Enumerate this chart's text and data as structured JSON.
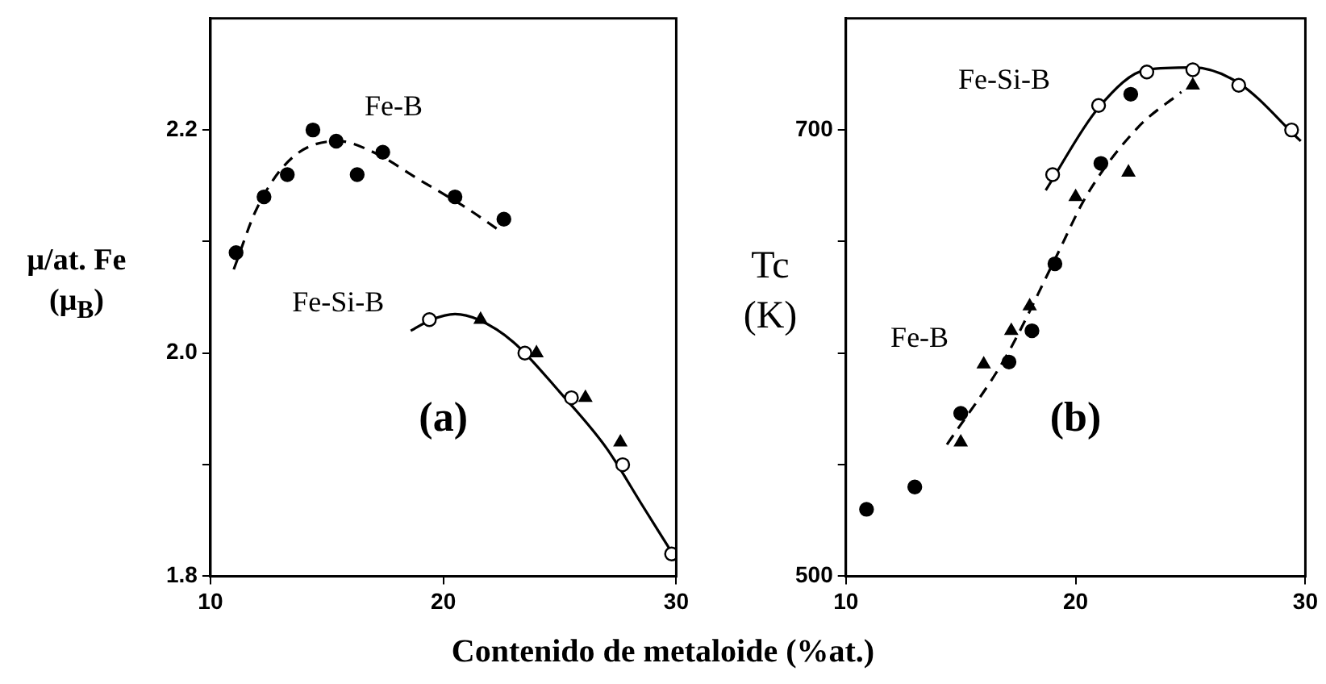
{
  "chart_data": [
    {
      "type": "scatter",
      "ylabel": "μ/at. Fe\n(μ$_{B}$)",
      "xlabel": "Contenido de metaloide (%at.)",
      "annotations": [
        "(a)"
      ],
      "xlim": [
        10,
        30
      ],
      "xticks": [
        10,
        20,
        30
      ],
      "ylim": [
        1.8,
        2.3
      ],
      "yticks": [
        1.8,
        {
          "value": 1.9,
          "label": null
        },
        {
          "value": 2.0,
          "label": "2.0"
        },
        {
          "value": 2.1,
          "label": null
        },
        2.2
      ],
      "grid": false,
      "legend": false,
      "series": [
        {
          "name": "Fe-B",
          "marker": "circle",
          "color": "#000000",
          "x": [
            11.1,
            12.3,
            13.3,
            14.4,
            15.4,
            16.3,
            17.4,
            20.5,
            22.6
          ],
          "values": [
            2.09,
            2.14,
            2.16,
            2.2,
            2.19,
            2.16,
            2.18,
            2.14,
            2.12
          ]
        },
        {
          "type": "line",
          "marker": "none",
          "line_style": "dashed",
          "color": "#000000",
          "x": [
            11.0,
            12.0,
            13.5,
            15.5,
            17.0,
            19.0,
            21.0,
            22.4
          ],
          "values": [
            2.075,
            2.13,
            2.175,
            2.19,
            2.18,
            2.155,
            2.13,
            2.11
          ]
        },
        {
          "name": "Fe-Si-B",
          "marker": "circle",
          "color": "#ffffff",
          "x": [
            19.4,
            23.5,
            25.5,
            27.7,
            29.8
          ],
          "values": [
            2.03,
            2.0,
            1.96,
            1.9,
            1.82
          ]
        },
        {
          "type": "line",
          "marker": "none",
          "line_style": "solid",
          "color": "#000000",
          "x": [
            18.6,
            19.5,
            20.5,
            21.5,
            23.0,
            25.0,
            27.0,
            28.5,
            30.0
          ],
          "values": [
            2.02,
            2.03,
            2.035,
            2.03,
            2.01,
            1.965,
            1.915,
            1.865,
            1.815
          ]
        },
        {
          "marker": "triangle",
          "color": "#000000",
          "x": [
            21.6,
            24.0,
            26.1,
            27.6
          ],
          "values": [
            2.03,
            2.0,
            1.96,
            1.92
          ]
        }
      ]
    },
    {
      "type": "scatter",
      "ylabel": "Tc\n(K)",
      "annotations": [
        "(b)"
      ],
      "xlim": [
        10,
        30
      ],
      "xticks": [
        10,
        20,
        30
      ],
      "ylim": [
        500,
        750
      ],
      "yticks": [
        500,
        {
          "value": 550,
          "label": null
        },
        {
          "value": 600,
          "label": null
        },
        {
          "value": 650,
          "label": null
        },
        700
      ],
      "grid": false,
      "legend": false,
      "series": [
        {
          "marker": "circle",
          "color": "#000000",
          "x": [
            10.9,
            13.0,
            15.0,
            17.1,
            18.1,
            19.1,
            21.1,
            22.4
          ],
          "values": [
            530,
            540,
            573,
            596,
            610,
            640,
            685,
            716
          ]
        },
        {
          "name": "Fe-B",
          "type": "line",
          "marker": "none",
          "line_style": "dashed",
          "color": "#000000",
          "x": [
            14.4,
            17.0,
            19.1,
            20.5,
            22.7,
            24.6
          ],
          "values": [
            559,
            599,
            642,
            671,
            701,
            717
          ]
        },
        {
          "name": "Fe-Si-B",
          "marker": "circle",
          "color": "#ffffff",
          "x": [
            19.0,
            21.0,
            23.1,
            25.1,
            27.1,
            29.4
          ],
          "values": [
            680,
            711,
            726,
            727,
            720,
            700
          ]
        },
        {
          "type": "line",
          "marker": "none",
          "line_style": "solid",
          "color": "#000000",
          "x": [
            18.7,
            21.0,
            23.1,
            25.1,
            27.1,
            29.8
          ],
          "values": [
            673,
            710,
            727,
            728,
            721,
            695
          ]
        },
        {
          "marker": "triangle",
          "color": "#000000",
          "x": [
            15.0,
            16.0,
            17.2,
            18.0,
            20.0,
            22.3,
            25.1
          ],
          "values": [
            560,
            595,
            610,
            621,
            670,
            681,
            720
          ]
        }
      ]
    }
  ]
}
